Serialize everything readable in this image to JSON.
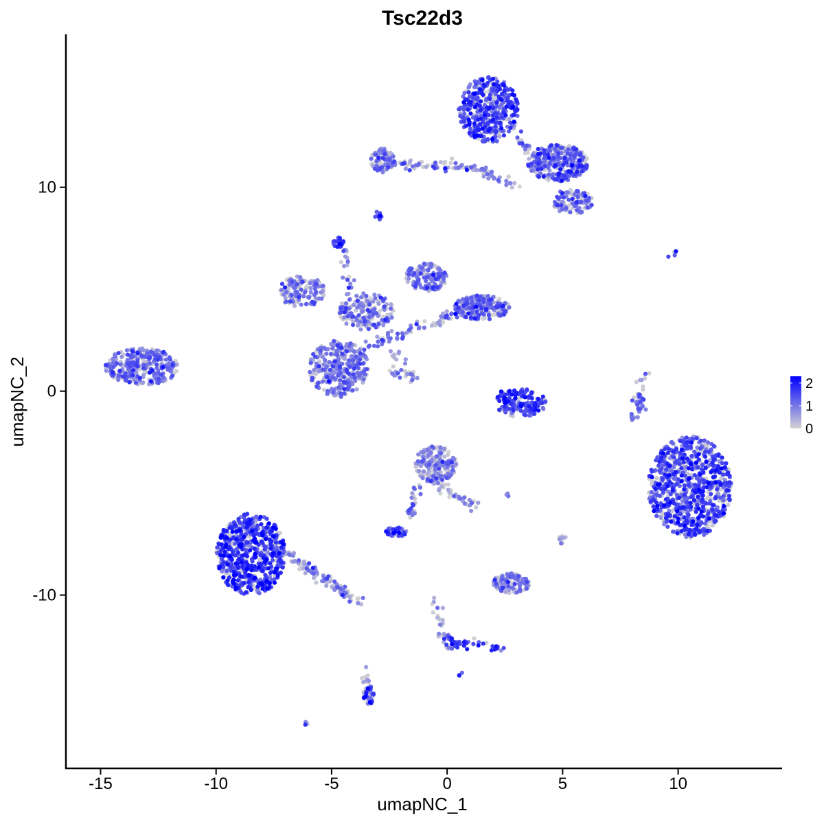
{
  "chart_data": {
    "type": "scatter",
    "title": "Tsc22d3",
    "xlabel": "umapNC_1",
    "ylabel": "umapNC_2",
    "xlim": [
      -16.5,
      14.5
    ],
    "ylim": [
      -18.5,
      17.5
    ],
    "x_ticks": [
      -15,
      -10,
      -5,
      0,
      5,
      10
    ],
    "x_tick_labels": [
      "-15",
      "-10",
      "-5",
      "0",
      "5",
      "10"
    ],
    "y_ticks": [
      -10,
      0,
      10
    ],
    "y_tick_labels": [
      "-10",
      "0",
      "10"
    ],
    "grid": false,
    "color_scale": {
      "low": "#d3d3d3",
      "high": "#0000ff",
      "min": 0,
      "max": 2.3,
      "ticks": [
        0,
        1,
        2
      ],
      "tick_labels": [
        "0",
        "1",
        "2"
      ]
    },
    "legend_placement": "right",
    "clusters": [
      {
        "cx": 1.8,
        "cy": 13.8,
        "rx": 1.3,
        "ry": 1.6,
        "n": 420,
        "mean": 1.4
      },
      {
        "cx": 4.8,
        "cy": 11.2,
        "rx": 1.3,
        "ry": 0.9,
        "n": 300,
        "mean": 1.2
      },
      {
        "cx": -2.8,
        "cy": 11.3,
        "rx": 0.5,
        "ry": 0.6,
        "n": 80,
        "mean": 1.0
      },
      {
        "cx": 5.4,
        "cy": 9.3,
        "rx": 0.9,
        "ry": 0.6,
        "n": 100,
        "mean": 0.9
      },
      {
        "cx": -4.7,
        "cy": 1.1,
        "rx": 1.3,
        "ry": 1.4,
        "n": 320,
        "mean": 0.9
      },
      {
        "cx": -3.5,
        "cy": 3.9,
        "rx": 1.2,
        "ry": 0.9,
        "n": 160,
        "mean": 0.8
      },
      {
        "cx": -6.3,
        "cy": 4.9,
        "rx": 1.0,
        "ry": 0.8,
        "n": 130,
        "mean": 0.8
      },
      {
        "cx": -0.9,
        "cy": 5.6,
        "rx": 0.9,
        "ry": 0.7,
        "n": 140,
        "mean": 1.0
      },
      {
        "cx": 1.5,
        "cy": 4.1,
        "rx": 1.2,
        "ry": 0.6,
        "n": 200,
        "mean": 1.1
      },
      {
        "cx": -13.2,
        "cy": 1.2,
        "rx": 1.6,
        "ry": 0.9,
        "n": 300,
        "mean": 1.0
      },
      {
        "cx": 3.2,
        "cy": -0.6,
        "rx": 1.1,
        "ry": 0.7,
        "n": 140,
        "mean": 1.5
      },
      {
        "cx": 10.5,
        "cy": -4.7,
        "rx": 1.8,
        "ry": 2.5,
        "n": 850,
        "mean": 1.4
      },
      {
        "cx": -8.5,
        "cy": -8.0,
        "rx": 1.5,
        "ry": 2.0,
        "n": 650,
        "mean": 1.6
      },
      {
        "cx": -0.5,
        "cy": -3.6,
        "rx": 0.9,
        "ry": 0.9,
        "n": 200,
        "mean": 0.8
      },
      {
        "cx": 2.8,
        "cy": -9.4,
        "rx": 0.8,
        "ry": 0.5,
        "n": 110,
        "mean": 0.8
      },
      {
        "cx": -3.4,
        "cy": -14.9,
        "rx": 0.25,
        "ry": 0.45,
        "n": 40,
        "mean": 1.6
      },
      {
        "cx": -2.2,
        "cy": -6.9,
        "rx": 0.45,
        "ry": 0.25,
        "n": 50,
        "mean": 1.4
      },
      {
        "cx": 8.4,
        "cy": -0.6,
        "rx": 0.25,
        "ry": 0.5,
        "n": 25,
        "mean": 0.9
      },
      {
        "cx": -4.7,
        "cy": 7.3,
        "rx": 0.25,
        "ry": 0.25,
        "n": 25,
        "mean": 1.6
      },
      {
        "cx": -3.0,
        "cy": 8.6,
        "rx": 0.2,
        "ry": 0.2,
        "n": 10,
        "mean": 1.5
      },
      {
        "cx": 5.0,
        "cy": -7.3,
        "rx": 0.2,
        "ry": 0.2,
        "n": 12,
        "mean": 0.2
      },
      {
        "cx": -6.1,
        "cy": -16.3,
        "rx": 0.08,
        "ry": 0.08,
        "n": 4,
        "mean": 1.4
      },
      {
        "cx": 0.6,
        "cy": -13.9,
        "rx": 0.1,
        "ry": 0.1,
        "n": 3,
        "mean": 1.5
      },
      {
        "cx": 9.7,
        "cy": 6.7,
        "rx": 0.35,
        "ry": 0.2,
        "n": 5,
        "mean": 1.3
      },
      {
        "cx": 2.6,
        "cy": -5.1,
        "rx": 0.15,
        "ry": 0.1,
        "n": 3,
        "mean": 1.2
      }
    ],
    "strands": [
      {
        "x1": -2.6,
        "y1": 11.1,
        "x2": 1.0,
        "y2": 11.0,
        "n": 60,
        "mean": 1.0
      },
      {
        "x1": 1.0,
        "y1": 11.0,
        "x2": 3.2,
        "y2": 10.0,
        "n": 40,
        "mean": 0.6
      },
      {
        "x1": 2.8,
        "y1": 12.8,
        "x2": 4.5,
        "y2": 10.5,
        "n": 30,
        "mean": 1.1
      },
      {
        "x1": -3.8,
        "y1": 2.0,
        "x2": 1.5,
        "y2": 4.3,
        "n": 90,
        "mean": 0.9
      },
      {
        "x1": -4.2,
        "y1": 3.5,
        "x2": -4.4,
        "y2": 7.0,
        "n": 30,
        "mean": 1.0
      },
      {
        "x1": -2.6,
        "y1": 2.0,
        "x2": -1.3,
        "y2": 0.7,
        "n": 20,
        "mean": 0.9
      },
      {
        "x1": -2.5,
        "y1": 1.0,
        "x2": -1.3,
        "y2": 0.6,
        "n": 15,
        "mean": 0.6
      },
      {
        "x1": -7.2,
        "y1": -7.8,
        "x2": -3.8,
        "y2": -10.4,
        "n": 110,
        "mean": 0.7
      },
      {
        "x1": -0.5,
        "y1": -4.5,
        "x2": 1.2,
        "y2": -5.6,
        "n": 40,
        "mean": 0.6
      },
      {
        "x1": -1.3,
        "y1": -4.5,
        "x2": -1.7,
        "y2": -6.3,
        "n": 25,
        "mean": 0.9
      },
      {
        "x1": -0.5,
        "y1": -10.3,
        "x2": 0.0,
        "y2": -12.6,
        "n": 30,
        "mean": 0.6
      },
      {
        "x1": 0.0,
        "y1": -12.3,
        "x2": 2.4,
        "y2": -12.6,
        "n": 40,
        "mean": 1.5
      },
      {
        "x1": 8.0,
        "y1": -1.5,
        "x2": 8.6,
        "y2": 1.0,
        "n": 20,
        "mean": 0.8
      },
      {
        "x1": -3.6,
        "y1": -13.6,
        "x2": -3.4,
        "y2": -14.6,
        "n": 12,
        "mean": 0.2
      },
      {
        "x1": 2.3,
        "y1": -0.2,
        "x2": 3.8,
        "y2": -1.0,
        "n": 30,
        "mean": 1.8
      }
    ]
  }
}
